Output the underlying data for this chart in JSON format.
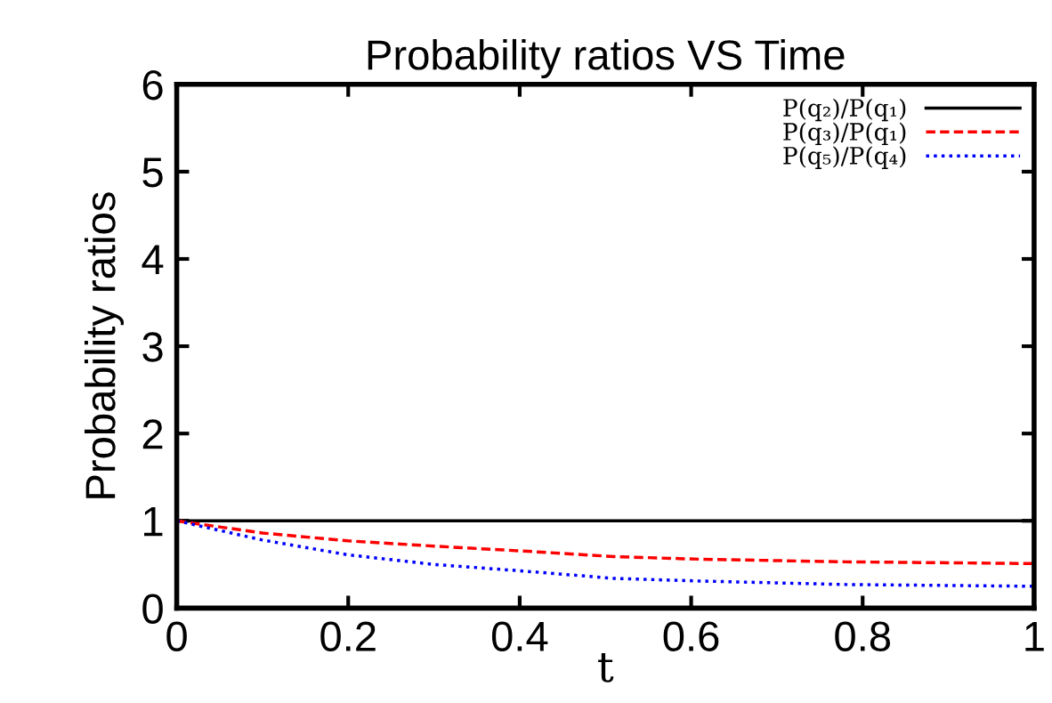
{
  "chart_data": {
    "type": "line",
    "title": "Probability ratios VS Time",
    "xlabel": "t",
    "ylabel": "Probability ratios",
    "xlim": [
      0,
      1
    ],
    "ylim": [
      0,
      6
    ],
    "xticks": [
      {
        "value": 0,
        "label": "0"
      },
      0.2,
      0.4,
      0.6,
      0.8,
      {
        "value": 1,
        "label": "1"
      }
    ],
    "yticks": [
      0,
      1,
      2,
      3,
      4,
      5,
      6
    ],
    "grid": false,
    "legend": "top right",
    "series": [
      {
        "name": "P(q₂)/P(q₁)",
        "color": "#000000",
        "line_style": "solid",
        "x": [
          0,
          1
        ],
        "values": [
          1,
          1
        ]
      },
      {
        "name": "P(q₃)/P(q₁)",
        "color": "#ff0000",
        "line_style": "dashed",
        "x": [
          0,
          0.1,
          0.2,
          0.3,
          0.41,
          0.51,
          0.61,
          0.78,
          1
        ],
        "values": [
          1,
          0.86,
          0.77,
          0.71,
          0.65,
          0.59,
          0.56,
          0.53,
          0.51
        ]
      },
      {
        "name": "P(q₅)/P(q₄)",
        "color": "#0000ff",
        "line_style": "dotted",
        "x": [
          0,
          0.1,
          0.2,
          0.3,
          0.41,
          0.51,
          0.61,
          0.78,
          1
        ],
        "values": [
          1,
          0.78,
          0.61,
          0.5,
          0.42,
          0.34,
          0.31,
          0.27,
          0.25
        ]
      }
    ]
  }
}
